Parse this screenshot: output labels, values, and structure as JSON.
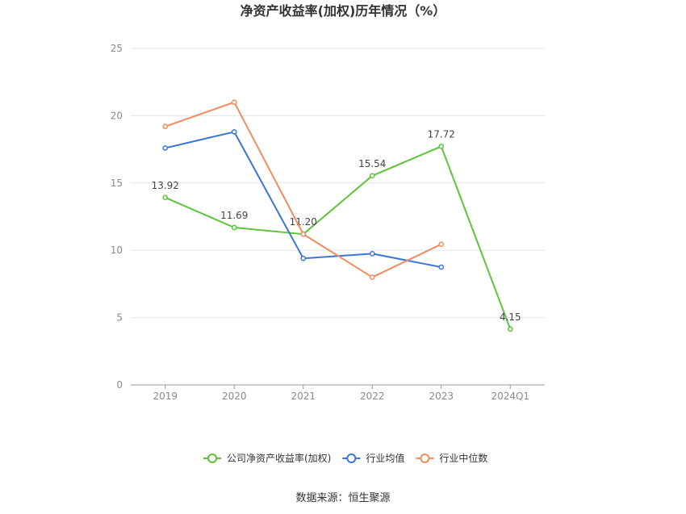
{
  "chart_data": {
    "type": "line",
    "title": "净资产收益率(加权)历年情况（%）",
    "categories": [
      "2019",
      "2020",
      "2021",
      "2022",
      "2023",
      "2024Q1"
    ],
    "ylim": [
      0,
      25
    ],
    "yticks": [
      0,
      5,
      10,
      15,
      20,
      25
    ],
    "grid": true,
    "legend_position": "bottom",
    "series": [
      {
        "name": "公司净资产收益率(加权)",
        "color": "#5cc43a",
        "values": [
          13.92,
          11.69,
          11.2,
          15.54,
          17.72,
          4.15
        ],
        "labels": [
          "13.92",
          "11.69",
          "11.20",
          "15.54",
          "17.72",
          "4.15"
        ]
      },
      {
        "name": "行业均值",
        "color": "#3a75d8",
        "values": [
          17.6,
          18.8,
          9.4,
          9.75,
          8.75,
          null
        ]
      },
      {
        "name": "行业中位数",
        "color": "#f08c5e",
        "values": [
          19.2,
          21.0,
          11.2,
          8.0,
          10.45,
          null
        ]
      }
    ]
  },
  "source": "数据来源：恒生聚源"
}
